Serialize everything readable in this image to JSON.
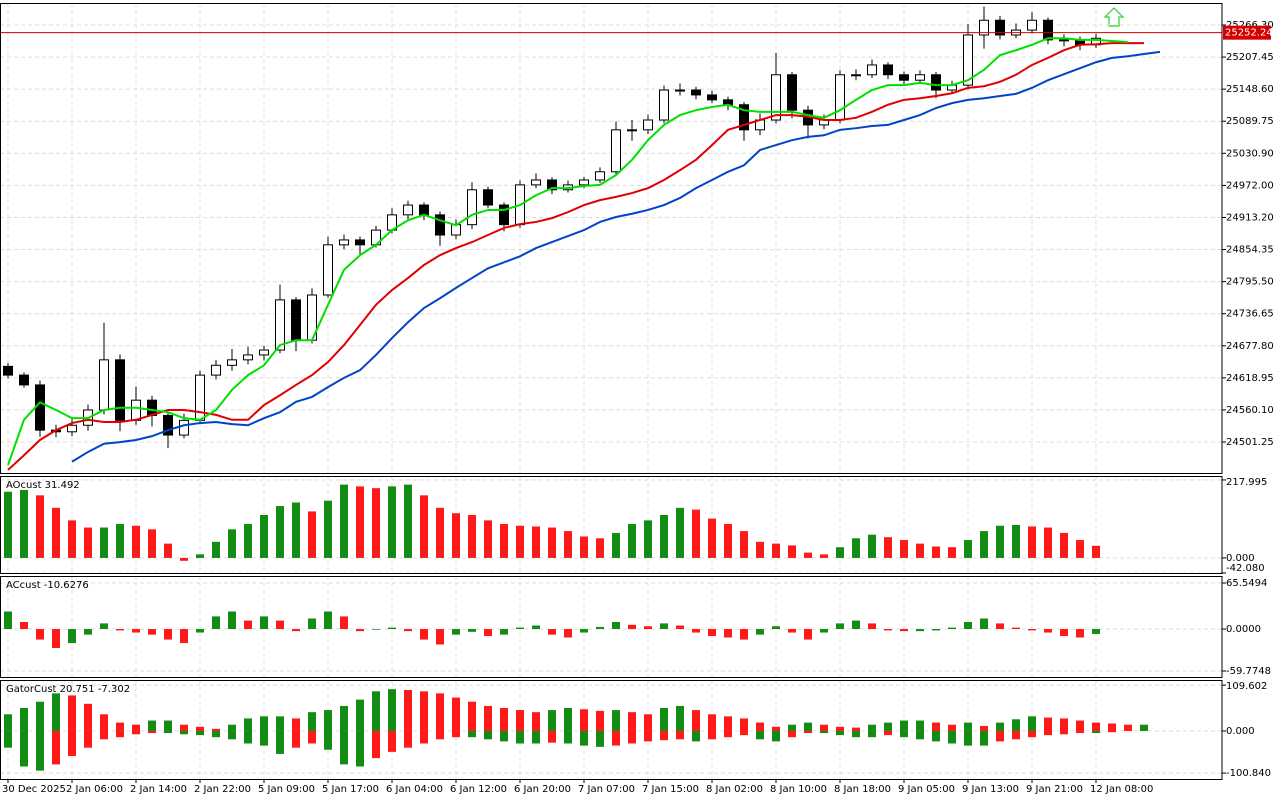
{
  "chart_data": [
    {
      "type": "candlestick",
      "categories": [
        "30 Dec 2025",
        null,
        null,
        null,
        "2 Jan 06:00",
        null,
        null,
        null,
        "2 Jan 14:00",
        null,
        null,
        null,
        "2 Jan 22:00",
        null,
        null,
        null,
        "5 Jan 09:00",
        null,
        null,
        null,
        "5 Jan 17:00",
        null,
        null,
        null,
        "6 Jan 04:00",
        null,
        null,
        null,
        "6 Jan 12:00",
        null,
        null,
        null,
        "6 Jan 20:00",
        null,
        null,
        null,
        "7 Jan 07:00",
        null,
        null,
        null,
        "7 Jan 15:00",
        null,
        null,
        null,
        "8 Jan 02:00",
        null,
        null,
        null,
        "8 Jan 10:00",
        null,
        null,
        null,
        "8 Jan 18:00",
        null,
        null,
        null,
        "9 Jan 05:00",
        null,
        null,
        null,
        "9 Jan 13:00",
        null,
        null,
        null,
        "9 Jan 21:00",
        null,
        null,
        null,
        "12 Jan 08:00",
        null,
        null,
        null,
        null
      ],
      "open": [
        24640,
        24624,
        24606,
        24523,
        24520,
        24532,
        24560,
        24652,
        24541,
        24578,
        24550,
        24514,
        24541,
        24624,
        24642,
        24652,
        24661,
        24670,
        24762,
        24688,
        24771,
        24863,
        24872,
        24863,
        24890,
        24918,
        24936,
        24918,
        24881,
        24900,
        24964,
        24936,
        24900,
        24973,
        24982,
        24964,
        24973,
        24982,
        24997,
        25074,
        25074,
        25092,
        25147,
        25147,
        25138,
        25129,
        25120,
        25074,
        25092,
        25175,
        25110,
        25083,
        25092,
        25175,
        25175,
        25193,
        25175,
        25165,
        25175,
        25147,
        25156,
        25248,
        25275,
        25248,
        25257,
        25275,
        25239,
        25239,
        25230,
        null,
        null,
        null,
        null
      ],
      "high": [
        24646,
        24629,
        24614,
        24533,
        24544,
        24570,
        24720,
        24662,
        24603,
        24586,
        24556,
        24553,
        24632,
        24652,
        24672,
        24676,
        24678,
        24790,
        24767,
        24783,
        24878,
        24882,
        24878,
        24898,
        24930,
        24944,
        24941,
        24924,
        24910,
        24978,
        24970,
        24941,
        24981,
        24994,
        24987,
        24981,
        24988,
        25005,
        25089,
        25092,
        25102,
        25155,
        25159,
        25153,
        25146,
        25135,
        25125,
        25104,
        25215,
        25180,
        25118,
        25102,
        25183,
        25185,
        25203,
        25198,
        25181,
        25183,
        25180,
        25164,
        25268,
        25300,
        25283,
        25269,
        25290,
        25280,
        25249,
        25245,
        25250,
        null,
        null,
        null,
        null
      ],
      "low": [
        24618,
        24601,
        24511,
        24510,
        24512,
        24522,
        24552,
        24521,
        24533,
        24530,
        24490,
        24508,
        24536,
        24616,
        24632,
        24644,
        24651,
        24664,
        24668,
        24682,
        24766,
        24855,
        24843,
        24858,
        24884,
        24910,
        24908,
        24861,
        24873,
        24892,
        24930,
        24888,
        24894,
        24967,
        24956,
        24959,
        24967,
        24977,
        24989,
        25054,
        25066,
        25086,
        25137,
        25130,
        25123,
        25110,
        25054,
        25064,
        25086,
        25095,
        25058,
        25075,
        25086,
        25165,
        25169,
        25167,
        25157,
        25159,
        25132,
        25141,
        25148,
        25223,
        25240,
        25242,
        25251,
        25231,
        25227,
        25220,
        25224,
        null,
        null,
        null,
        null
      ],
      "close": [
        24624,
        24606,
        24523,
        24520,
        24532,
        24560,
        24652,
        24541,
        24578,
        24550,
        24514,
        24541,
        24624,
        24642,
        24652,
        24661,
        24670,
        24762,
        24688,
        24771,
        24863,
        24872,
        24863,
        24890,
        24918,
        24936,
        24918,
        24881,
        24900,
        24964,
        24936,
        24900,
        24973,
        24982,
        24964,
        24973,
        24982,
        24997,
        25074,
        25074,
        25092,
        25147,
        25147,
        25138,
        25129,
        25120,
        25074,
        25092,
        25175,
        25110,
        25083,
        25092,
        25175,
        25175,
        25193,
        25175,
        25165,
        25175,
        25147,
        25156,
        25248,
        25275,
        25248,
        25257,
        25275,
        25239,
        25239,
        25230,
        25242,
        null,
        null,
        null,
        null
      ],
      "up_fill": "#ffffff",
      "down_fill": "#000000",
      "candle_color": "#000000",
      "lines": [
        {
          "color": "#0044c8",
          "values": [
            null,
            null,
            null,
            null,
            24465,
            24483,
            24498,
            24501,
            24505,
            24512,
            24523,
            24532,
            24536,
            24538,
            24534,
            24532,
            24545,
            24556,
            24575,
            24584,
            24602,
            24619,
            24633,
            24661,
            24692,
            24721,
            24747,
            24765,
            24784,
            24802,
            24820,
            24831,
            24842,
            24857,
            24868,
            24879,
            24890,
            24905,
            24914,
            24920,
            24927,
            24936,
            24949,
            24967,
            24982,
            24997,
            25009,
            25037,
            25046,
            25055,
            25061,
            25064,
            25074,
            25077,
            25081,
            25083,
            25092,
            25101,
            25114,
            25123,
            25129,
            25132,
            25136,
            25140,
            25151,
            25165,
            25176,
            25187,
            25198,
            25206,
            25209,
            25213,
            25217
          ]
        },
        {
          "color": "#e00000",
          "values": [
            24450,
            24477,
            24505,
            24523,
            24536,
            24542,
            24538,
            24538,
            24542,
            24551,
            24560,
            24560,
            24556,
            24551,
            24542,
            24542,
            24569,
            24587,
            24606,
            24624,
            24648,
            24679,
            24716,
            24753,
            24780,
            24802,
            24826,
            24844,
            24857,
            24868,
            24881,
            24894,
            24901,
            24905,
            24912,
            24923,
            24936,
            24945,
            24951,
            24958,
            24967,
            24982,
            25000,
            25019,
            25046,
            25074,
            25083,
            25092,
            25101,
            25101,
            25098,
            25092,
            25092,
            25096,
            25107,
            25120,
            25129,
            25132,
            25136,
            25141,
            25151,
            25154,
            25162,
            25175,
            25193,
            25206,
            25220,
            25230,
            25231,
            25233,
            25233,
            25233,
            null
          ]
        },
        {
          "color": "#00e000",
          "values": [
            24459,
            24542,
            24574,
            24560,
            24545,
            24545,
            24560,
            24564,
            24564,
            24560,
            24556,
            24545,
            24542,
            24560,
            24597,
            24624,
            24642,
            24679,
            24688,
            24688,
            24753,
            24817,
            24844,
            24863,
            24890,
            24908,
            24918,
            24908,
            24899,
            24918,
            24927,
            24927,
            24936,
            24954,
            24967,
            24967,
            24971,
            24973,
            24991,
            25019,
            25055,
            25083,
            25101,
            25110,
            25116,
            25120,
            25110,
            25107,
            25107,
            25107,
            25101,
            25096,
            25110,
            25129,
            25147,
            25156,
            25156,
            25160,
            25156,
            25156,
            25165,
            25184,
            25211,
            25220,
            25230,
            25242,
            25242,
            25239,
            25239,
            25237,
            25235,
            null,
            null
          ]
        }
      ],
      "current_price": 25252.24,
      "current_price_color": "#d40000",
      "ylim": [
        24444.4,
        25306.66
      ],
      "yticks": [
        {
          "value": 25266.3,
          "label": "25266.30"
        },
        25207.45,
        {
          "value": 25148.6,
          "label": "25148.60"
        },
        25089.75,
        {
          "value": 25030.9,
          "label": "25030.90"
        },
        {
          "value": 24972,
          "label": "24972.00"
        },
        {
          "value": 24913.2,
          "label": "24913.20"
        },
        24854.35,
        {
          "value": 24795.5,
          "label": "24795.50"
        },
        24736.65,
        {
          "value": 24677.8,
          "label": "24677.80"
        },
        24618.95,
        {
          "value": 24560.1,
          "label": "24560.10"
        },
        24501.25
      ],
      "grid": true
    },
    {
      "type": "bar",
      "title": "AOcust 31.492",
      "values": [
        185,
        190,
        175,
        140,
        105,
        85,
        85,
        95,
        90,
        80,
        40,
        -8,
        10,
        45,
        80,
        95,
        120,
        145,
        155,
        130,
        160,
        205,
        200,
        195,
        200,
        205,
        175,
        140,
        125,
        120,
        105,
        95,
        90,
        88,
        85,
        75,
        60,
        55,
        70,
        95,
        105,
        120,
        140,
        135,
        110,
        95,
        75,
        45,
        40,
        35,
        15,
        10,
        30,
        55,
        65,
        58,
        50,
        40,
        32,
        30,
        50,
        75,
        90,
        92,
        88,
        85,
        70,
        50,
        34,
        null,
        null,
        null,
        null
      ],
      "up_color": "#148c14",
      "down_color": "#ff1a1a",
      "ylim": [
        -42.08,
        229
      ],
      "yticks": [
        217.995,
        {
          "value": 0,
          "label": "0.000"
        },
        {
          "value": -42.08,
          "label": "-42.080"
        }
      ],
      "grid": true
    },
    {
      "type": "bar",
      "title": "ACcust -10.6276",
      "values": [
        25,
        10,
        -15,
        -27,
        -20,
        -8,
        8,
        -2,
        -5,
        -8,
        -15,
        -20,
        -5,
        18,
        25,
        12,
        18,
        12,
        -3,
        15,
        25,
        18,
        -3,
        -1,
        2,
        -3,
        -15,
        -22,
        -8,
        -4,
        -10,
        -8,
        2,
        5,
        -8,
        -12,
        -5,
        3,
        10,
        6,
        4,
        8,
        5,
        -5,
        -10,
        -12,
        -15,
        -8,
        4,
        -5,
        -15,
        -5,
        8,
        12,
        8,
        -2,
        -3,
        -3,
        -2,
        2,
        10,
        15,
        8,
        2,
        -2,
        -5,
        -10,
        -12,
        -7,
        null,
        null,
        null,
        null
      ],
      "up_color": "#148c14",
      "down_color": "#ff1a1a",
      "ylim": [
        -68.3,
        75.5
      ],
      "yticks": [
        65.5494,
        {
          "value": 0,
          "label": "0.0000"
        },
        -59.7748
      ],
      "grid": true
    },
    {
      "type": "gator",
      "title": "GatorCust 20.751 -7.302",
      "upper": [
        40,
        55,
        70,
        90,
        85,
        65,
        40,
        20,
        15,
        25,
        25,
        15,
        10,
        5,
        15,
        30,
        35,
        35,
        30,
        45,
        50,
        60,
        75,
        95,
        100,
        98,
        95,
        90,
        80,
        70,
        60,
        55,
        50,
        45,
        50,
        55,
        52,
        48,
        50,
        45,
        40,
        55,
        60,
        50,
        40,
        35,
        30,
        20,
        10,
        15,
        20,
        15,
        10,
        8,
        15,
        20,
        25,
        25,
        20,
        15,
        20,
        12,
        20,
        28,
        35,
        32,
        30,
        25,
        20,
        18,
        15,
        15,
        null
      ],
      "lower": [
        -40,
        -85,
        -95,
        -80,
        -60,
        -40,
        -20,
        -15,
        -8,
        -5,
        -5,
        -8,
        -10,
        -15,
        -20,
        -30,
        -35,
        -55,
        -40,
        -30,
        -45,
        -80,
        -85,
        -65,
        -50,
        -40,
        -30,
        -20,
        -15,
        -15,
        -20,
        -25,
        -30,
        -30,
        -28,
        -30,
        -35,
        -38,
        -35,
        -30,
        -25,
        -22,
        -20,
        -25,
        -20,
        -15,
        -10,
        -20,
        -25,
        -15,
        -5,
        -5,
        -10,
        -15,
        -15,
        -10,
        -15,
        -20,
        -25,
        -30,
        -35,
        -35,
        -25,
        -20,
        -15,
        -10,
        -8,
        -5,
        -5,
        -3,
        null,
        null,
        null
      ],
      "up_color": "#148c14",
      "down_color": "#ff1a1a",
      "ylim": [
        -115,
        122
      ],
      "yticks": [
        109.602,
        {
          "value": 0,
          "label": "0.000"
        },
        {
          "value": -100.84,
          "label": "-100.840"
        }
      ],
      "grid": true
    }
  ]
}
